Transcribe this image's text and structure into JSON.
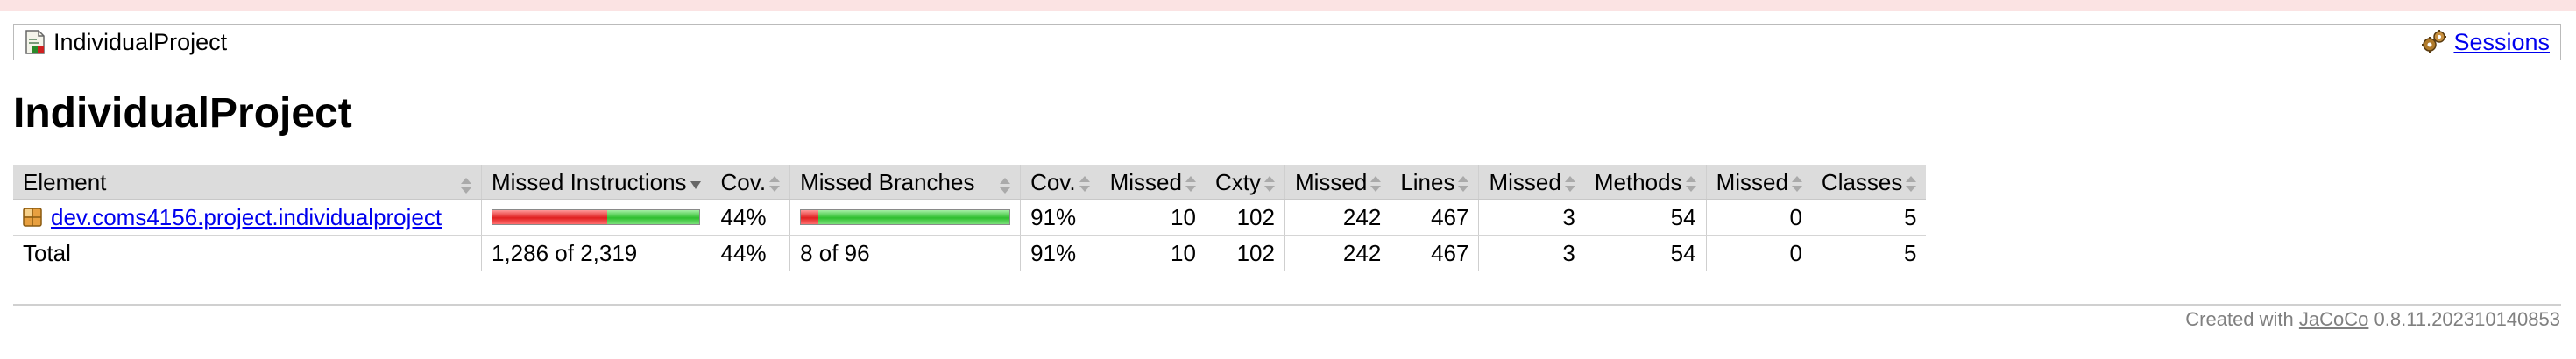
{
  "breadcrumb": {
    "title": "IndividualProject",
    "sessions_label": "Sessions",
    "icons": {
      "report": "report-icon",
      "sessions": "gear-icon"
    }
  },
  "page_title": "IndividualProject",
  "table": {
    "headers": {
      "element": "Element",
      "missed_instructions": "Missed Instructions",
      "cov1": "Cov.",
      "missed_branches": "Missed Branches",
      "cov2": "Cov.",
      "missed_cxty": "Missed",
      "cxty": "Cxty",
      "missed_lines": "Missed",
      "lines": "Lines",
      "missed_methods": "Missed",
      "methods": "Methods",
      "missed_classes": "Missed",
      "classes": "Classes"
    },
    "rows": [
      {
        "element": "dev.coms4156.project.individualproject",
        "instr_missed_fraction": 0.555,
        "instr_cov": "44%",
        "branch_missed_fraction": 0.083,
        "branch_cov": "91%",
        "missed_cxty": "10",
        "cxty": "102",
        "missed_lines": "242",
        "lines": "467",
        "missed_methods": "3",
        "methods": "54",
        "missed_classes": "0",
        "classes": "5"
      }
    ],
    "total": {
      "label": "Total",
      "instructions": "1,286 of 2,319",
      "instr_cov": "44%",
      "branches": "8 of 96",
      "branch_cov": "91%",
      "missed_cxty": "10",
      "cxty": "102",
      "missed_lines": "242",
      "lines": "467",
      "missed_methods": "3",
      "methods": "54",
      "missed_classes": "0",
      "classes": "5"
    }
  },
  "footer": {
    "prefix": "Created with",
    "link": "JaCoCo",
    "version": "0.8.11.202310140853"
  },
  "colors": {
    "link": "#0000ee",
    "bar_red": "#e02020",
    "bar_green": "#2fbf2f",
    "header_bg": "#dcdcdc"
  }
}
